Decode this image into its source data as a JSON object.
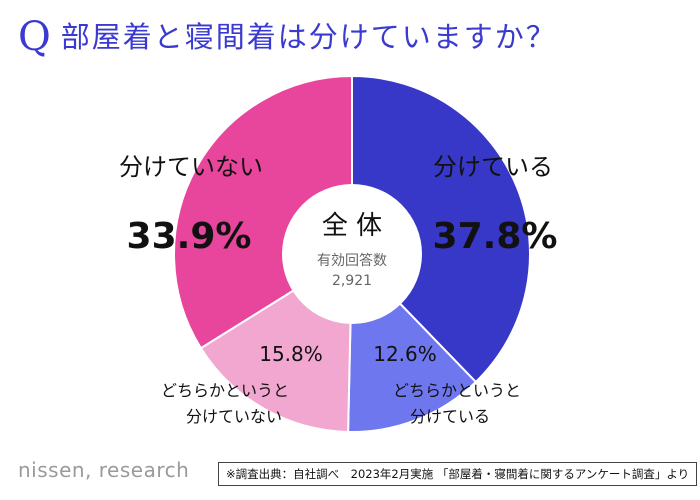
{
  "question": {
    "mark": "Q",
    "text": "部屋着と寝間着は分けていますか？"
  },
  "center": {
    "title": "全 体",
    "subtitle": "有効回答数",
    "count": "2,921"
  },
  "colors": {
    "title": "#3a3ad1",
    "separate": "#3737c8",
    "somewhat_separate": "#6f77ee",
    "somewhat_not_separate": "#f2a7d0",
    "not_separate": "#e8459c"
  },
  "chart_data": {
    "type": "pie",
    "donut": true,
    "categories": [
      "分けている",
      "どちらかというと分けている",
      "どちらかというと分けていない",
      "分けていない"
    ],
    "values": [
      37.8,
      12.6,
      15.8,
      33.9
    ],
    "value_labels": [
      "37.8%",
      "12.6%",
      "15.8%",
      "33.9%"
    ],
    "category_label_lines": [
      [
        "分けている"
      ],
      [
        "どちらかというと",
        "分けている"
      ],
      [
        "どちらかというと",
        "分けていない"
      ],
      [
        "分けていない"
      ]
    ],
    "start": "12 o'clock",
    "direction": "clockwise"
  },
  "footer": {
    "brand": "nissen, research",
    "note": "※調査出典：自社調べ　2023年2月実施 「部屋着・寝間着に関するアンケート調査」より"
  }
}
